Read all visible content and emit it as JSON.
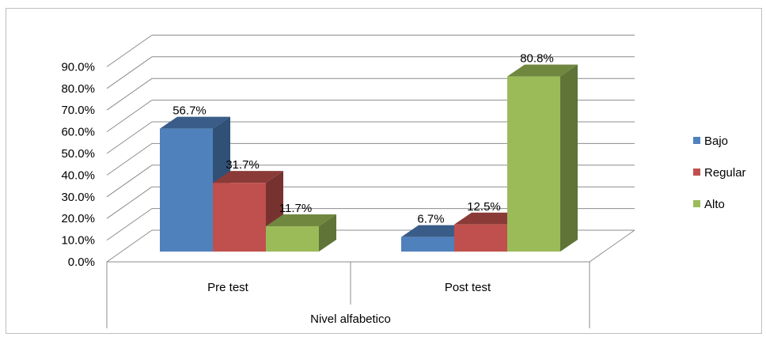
{
  "chart_data": {
    "type": "bar",
    "style": "3d-clustered-column",
    "categories": [
      "Pre test",
      "Post test"
    ],
    "group_label": "Nivel alfabetico",
    "ylim": [
      0,
      90
    ],
    "yticks": [
      "0.0%",
      "10.0%",
      "20.0%",
      "30.0%",
      "40.0%",
      "50.0%",
      "60.0%",
      "70.0%",
      "80.0%",
      "90.0%"
    ],
    "legend_position": "right",
    "gridlines": true,
    "series": [
      {
        "name": "Bajo",
        "values": [
          56.7,
          6.7
        ],
        "labels": [
          "56.7%",
          "6.7%"
        ],
        "color": "#4f81bd"
      },
      {
        "name": "Regular",
        "values": [
          31.7,
          12.5
        ],
        "labels": [
          "31.7%",
          "12.5%"
        ],
        "color": "#c0504d"
      },
      {
        "name": "Alto",
        "values": [
          11.7,
          80.8
        ],
        "labels": [
          "11.7%",
          "80.8%"
        ],
        "color": "#9bbb59"
      }
    ]
  }
}
